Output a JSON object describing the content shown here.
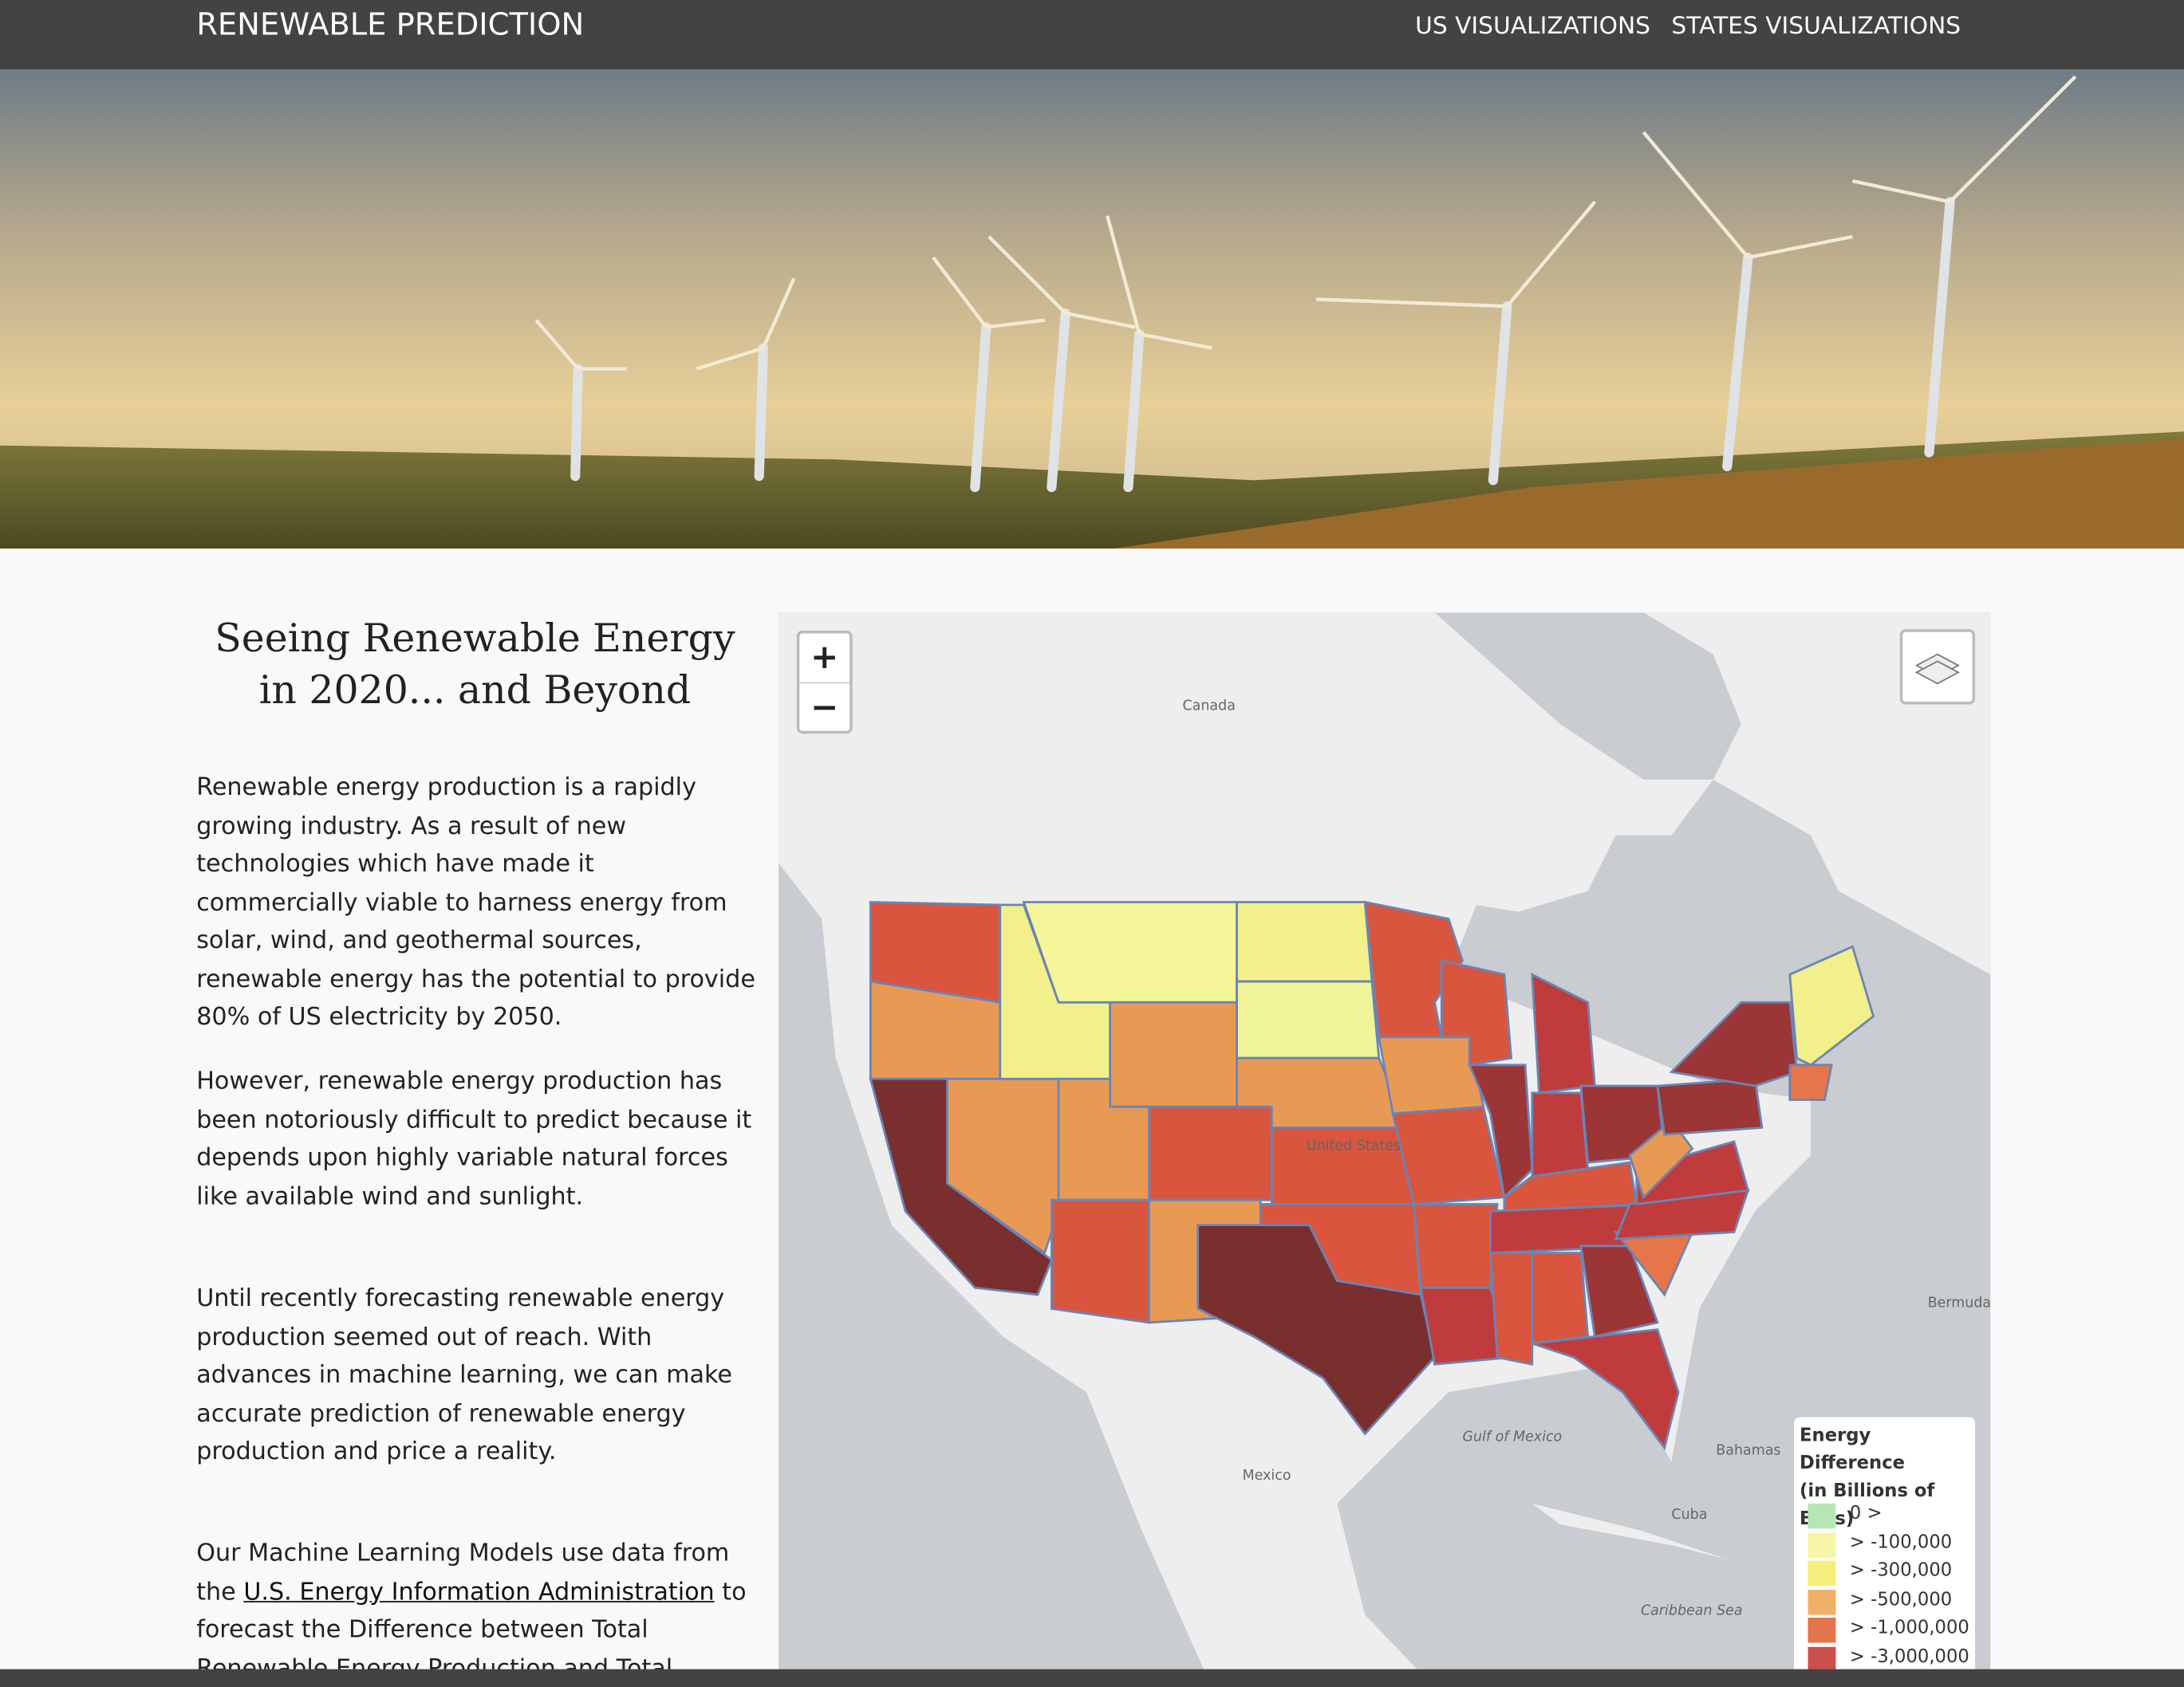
{
  "nav": {
    "brand": "RENEWABLE PREDICTION",
    "links": [
      "US VISUALIZATIONS",
      "STATES VISUALIZATIONS"
    ]
  },
  "intro": {
    "heading": "Seeing Renewable Energy in 2020... and Beyond",
    "paragraphs": [
      "Renewable energy production is a rapidly growing industry. As a result of new technologies which have made it commercially viable to harness energy from solar, wind, and geothermal sources, renewable energy has the potential to provide 80% of US electricity by 2050.",
      "However, renewable energy production has been notoriously difficult to predict because it depends upon highly variable natural forces like available wind and sunlight.",
      "Until recently forecasting renewable energy production seemed out of reach. With advances in machine learning, we can make accurate prediction of renewable energy production and price a reality.",
      {
        "before": "Our Machine Learning Models use data from the ",
        "link": "U.S. Energy Information Administration",
        "after": " to forecast the Difference between Total Renewable Energy Production and Total Energy Consumption at the"
      }
    ]
  },
  "map": {
    "zoom_in": "+",
    "zoom_out": "−",
    "labels": [
      "Canada",
      "United States",
      "Mexico",
      "Gulf of Mexico",
      "Cuba",
      "Bermuda",
      "Bahamas",
      "Caribbean Sea"
    ],
    "legend": {
      "title": "Energy Difference",
      "subtitle": "(in Billions of Btus)",
      "items": [
        {
          "label": "0 >",
          "color": "#b7e6b5"
        },
        {
          "label": "> -100,000",
          "color": "#f6f6a6"
        },
        {
          "label": "> -300,000",
          "color": "#f4ee7a"
        },
        {
          "label": "> -500,000",
          "color": "#f0b067"
        },
        {
          "label": "> -1,000,000",
          "color": "#e4744c"
        },
        {
          "label": "> -3,000,000",
          "color": "#c9504d"
        }
      ]
    }
  }
}
